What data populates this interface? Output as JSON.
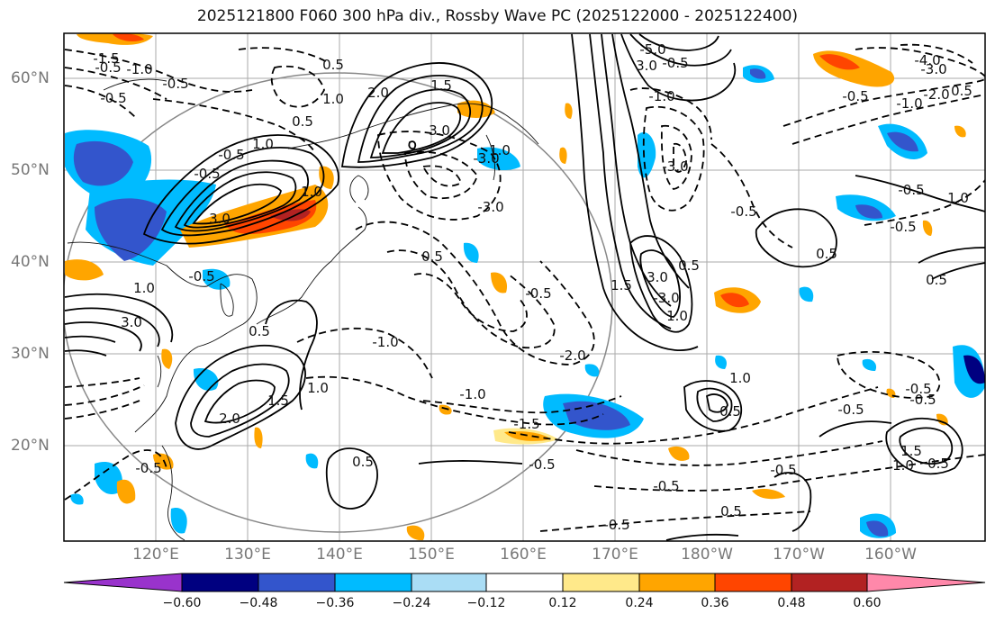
{
  "title": "2025121800 F060 300 hPa div., Rossby Wave PC (2025122000 - 2025122400)",
  "lat_labels": [
    "60°N",
    "50°N",
    "40°N",
    "30°N",
    "20°N"
  ],
  "lon_labels": [
    "120°E",
    "130°E",
    "140°E",
    "150°E",
    "160°E",
    "170°E",
    "180°W",
    "170°W",
    "160°W"
  ],
  "colorbar": {
    "ticks": [
      "−0.60",
      "−0.48",
      "−0.36",
      "−0.24",
      "−0.12",
      "0.12",
      "0.24",
      "0.36",
      "0.48",
      "0.60"
    ],
    "colors": [
      "#9933cc",
      "#000080",
      "#3355cc",
      "#00bbff",
      "#aaddf5",
      "#ffffff",
      "#ffe98a",
      "#ffa500",
      "#ff4500",
      "#b22222",
      "#ff88aa"
    ]
  },
  "contour_labels": [
    {
      "text": "-1.5"
    },
    {
      "text": "-1.0"
    },
    {
      "text": "-0.5"
    },
    {
      "text": "-0.5"
    },
    {
      "text": "-0.5"
    },
    {
      "text": "2.0"
    },
    {
      "text": "1.5"
    },
    {
      "text": "0.5"
    },
    {
      "text": "3.0"
    },
    {
      "text": "1.0"
    },
    {
      "text": "-0.5"
    },
    {
      "text": "1.0"
    },
    {
      "text": "0.5"
    },
    {
      "text": "-3.0"
    },
    {
      "text": "3.0"
    },
    {
      "text": "-3.0"
    },
    {
      "text": "0.5"
    },
    {
      "text": "-0.5"
    },
    {
      "text": "-1.0"
    },
    {
      "text": "-1.0"
    },
    {
      "text": "-2.0"
    },
    {
      "text": "-1.5"
    },
    {
      "text": "-0.5"
    },
    {
      "text": "-0.5"
    },
    {
      "text": "1.5"
    },
    {
      "text": "1.0"
    },
    {
      "text": "0.5"
    },
    {
      "text": "0.5"
    },
    {
      "text": "1.0"
    },
    {
      "text": "2.0"
    },
    {
      "text": "1.5"
    },
    {
      "text": "3.0"
    },
    {
      "text": "-5.0"
    },
    {
      "text": "3.0"
    },
    {
      "text": "-0.5"
    },
    {
      "text": "-3.0"
    },
    {
      "text": "-1.0"
    },
    {
      "text": "3.0"
    },
    {
      "text": "-3.0"
    },
    {
      "text": "0.5"
    },
    {
      "text": "1.0"
    },
    {
      "text": "-0.5"
    },
    {
      "text": "0.5"
    },
    {
      "text": "-0.5"
    },
    {
      "text": "-0.5"
    },
    {
      "text": "0.5"
    },
    {
      "text": "1.0"
    },
    {
      "text": "-0.5"
    },
    {
      "text": "0.5"
    },
    {
      "text": "-4.0"
    },
    {
      "text": "-3.0"
    },
    {
      "text": "-2.0"
    },
    {
      "text": "0.5"
    },
    {
      "text": "-0.5"
    },
    {
      "text": "-1.0"
    },
    {
      "text": "-0.5"
    },
    {
      "text": "0.5"
    },
    {
      "text": "1.0"
    },
    {
      "text": "-0.5"
    },
    {
      "text": "-0.5"
    },
    {
      "text": "1.5"
    },
    {
      "text": "1.0"
    },
    {
      "text": "0.5"
    },
    {
      "text": "-0.5"
    },
    {
      "text": "-0.5"
    },
    {
      "text": "-0.5"
    },
    {
      "text": "1.0"
    },
    {
      "text": "-0.5"
    },
    {
      "text": "1.0"
    }
  ]
}
